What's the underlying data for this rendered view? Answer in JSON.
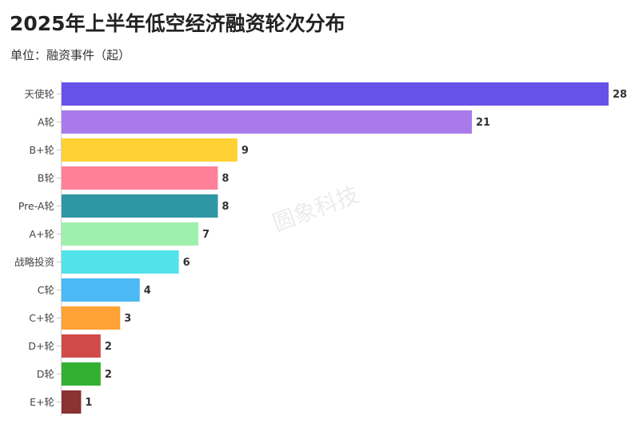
{
  "chart_data": {
    "type": "bar",
    "orientation": "horizontal",
    "title": "2025年上半年低空经济融资轮次分布",
    "subtitle": "单位：融资事件（起）",
    "categories": [
      "天使轮",
      "A轮",
      "B+轮",
      "B轮",
      "Pre-A轮",
      "A+轮",
      "战略投资",
      "C轮",
      "C+轮",
      "D+轮",
      "D轮",
      "E+轮"
    ],
    "values": [
      28,
      21,
      9,
      8,
      8,
      7,
      6,
      4,
      3,
      2,
      2,
      1
    ],
    "colors": [
      "#6652e8",
      "#a97aea",
      "#ffd134",
      "#ff8199",
      "#2f96a4",
      "#9ff0ad",
      "#52e2ea",
      "#4bb9f3",
      "#ffa135",
      "#d04a4a",
      "#33b032",
      "#8b3232"
    ],
    "xlim": [
      0,
      28
    ],
    "grid": false,
    "legend": "none",
    "watermark": "圆象科技"
  }
}
